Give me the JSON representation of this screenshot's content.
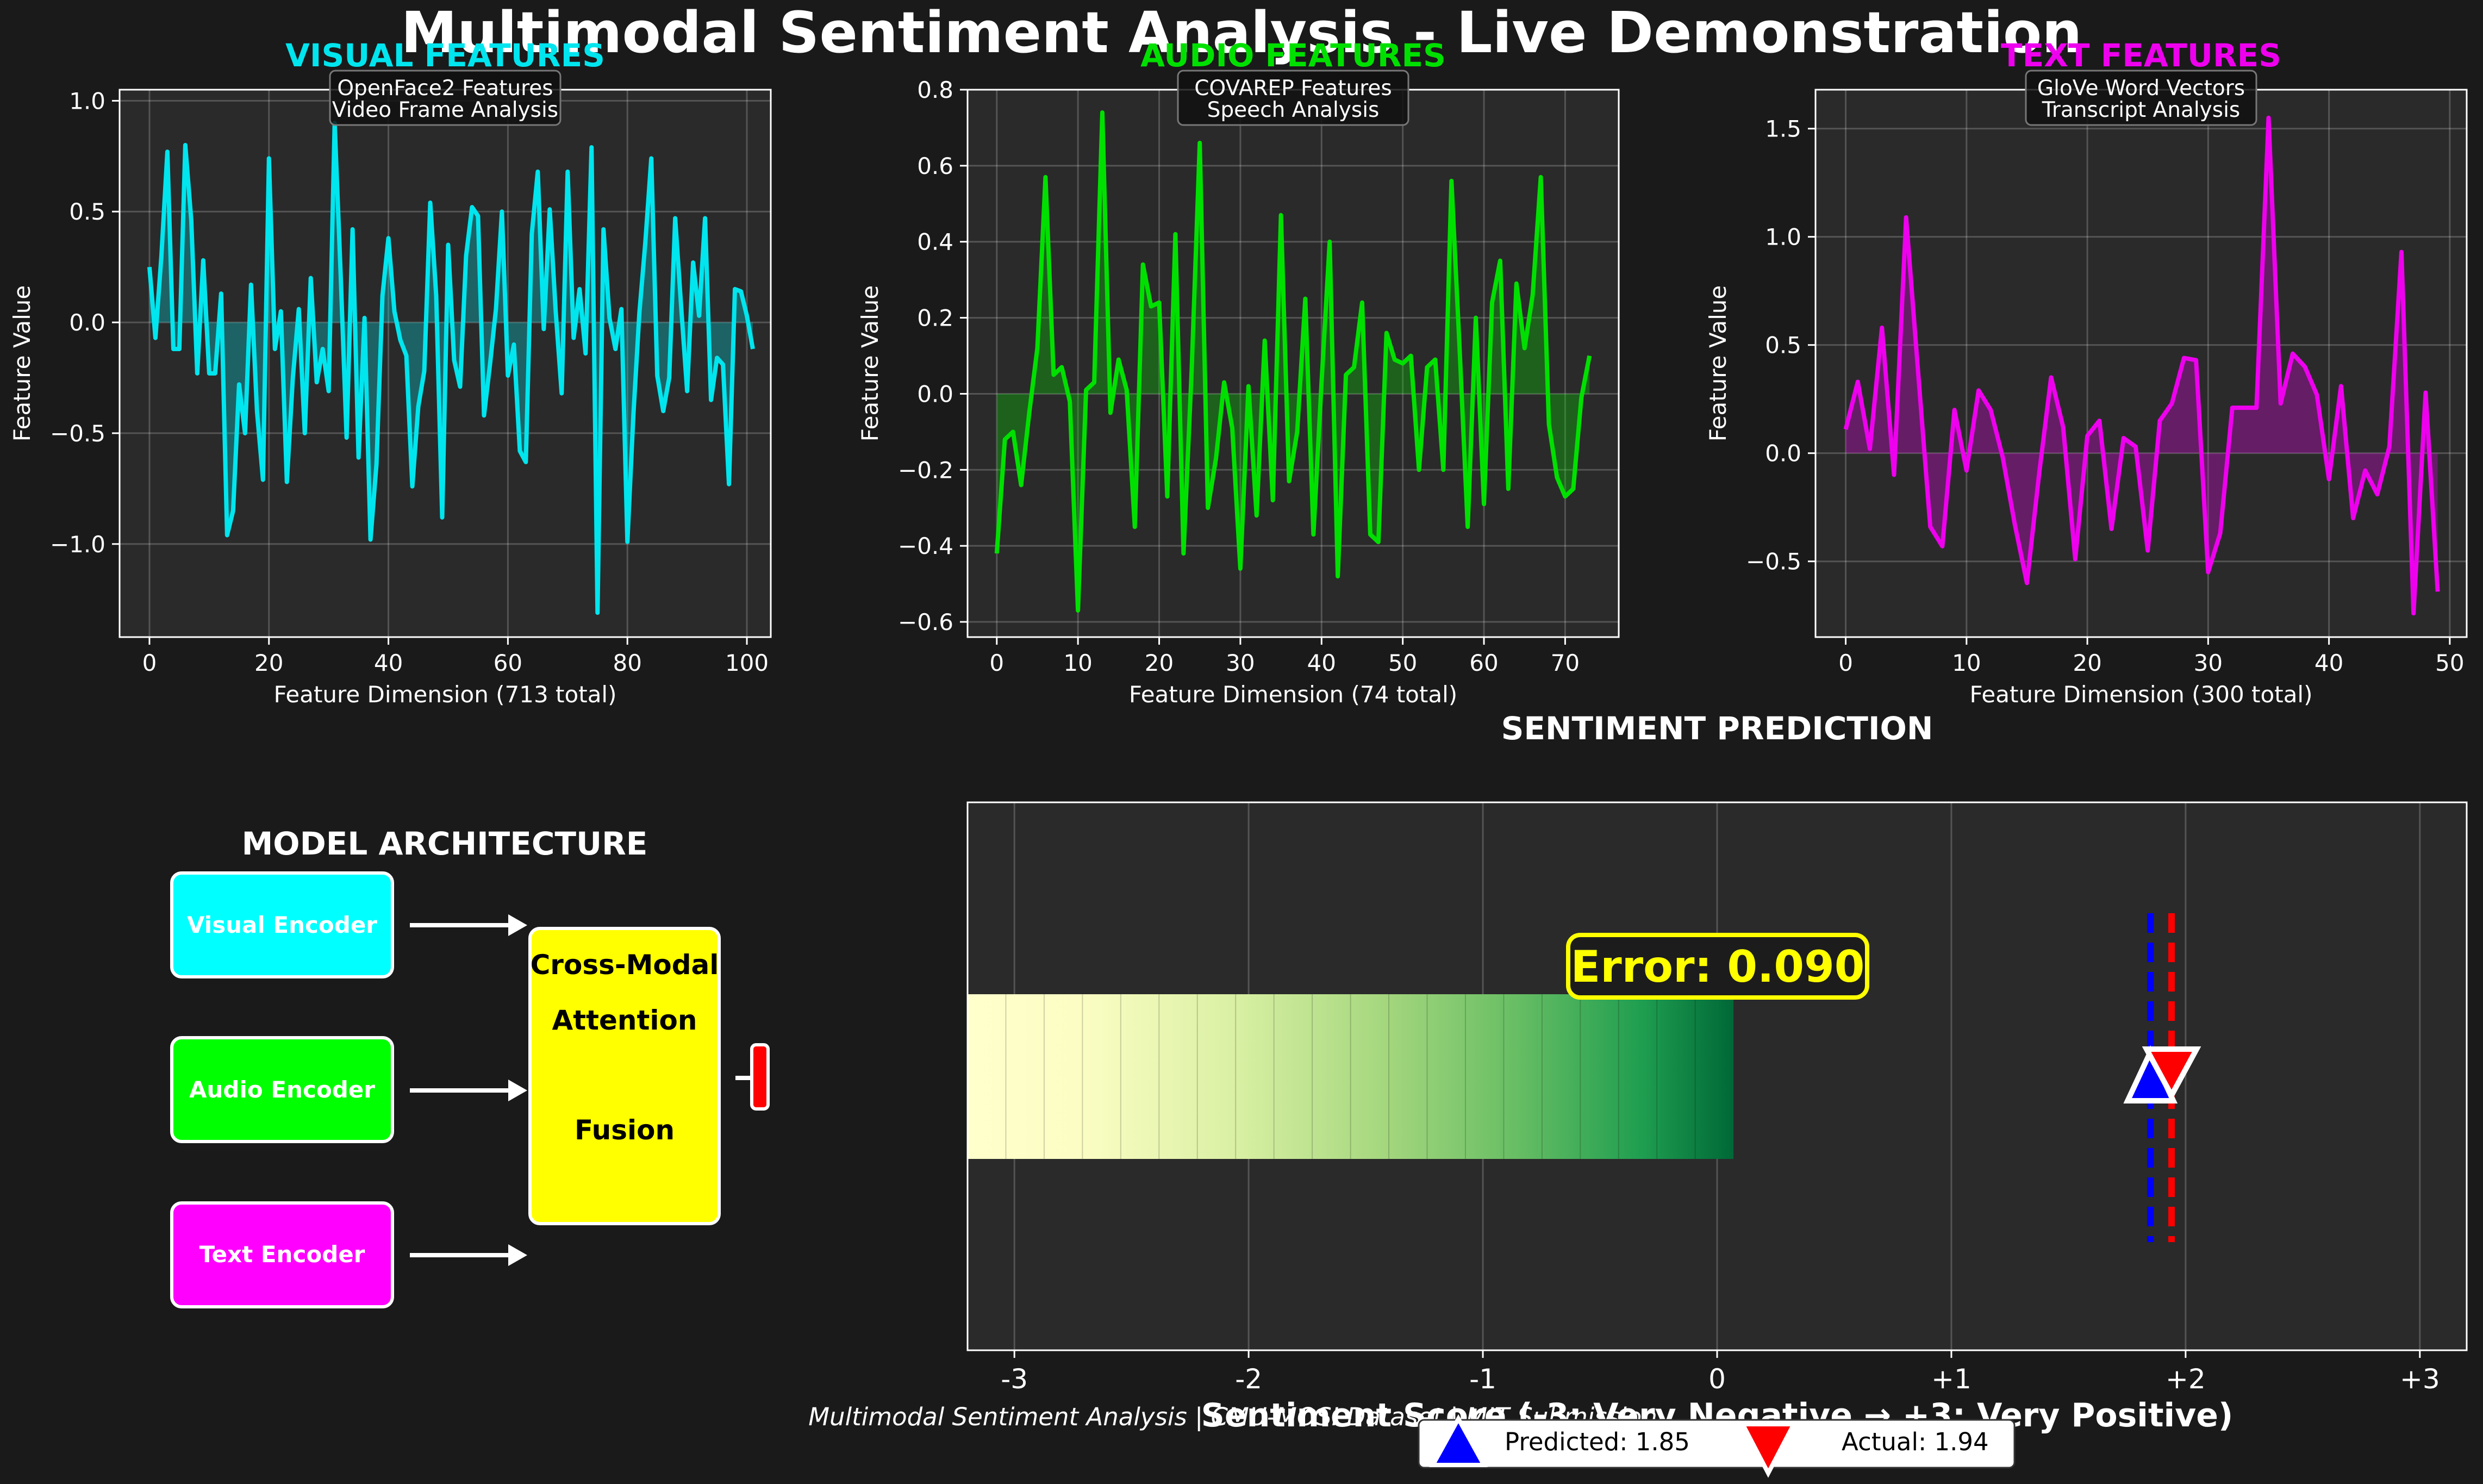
{
  "title": "Multimodal Sentiment Analysis - Live Demonstration",
  "colors": {
    "background": "#1a1a1a",
    "axes_bg": "#2a2a2a",
    "visual": "#00e5ee",
    "audio": "#00e000",
    "text": "#ee00ee",
    "predicted": "#0000ff",
    "actual": "#ff0000",
    "fusion": "#ffff00",
    "error": "#ffff00"
  },
  "panels": [
    {
      "title": "VISUAL FEATURES",
      "box_lines": [
        "OpenFace2 Features",
        "Video Frame Analysis"
      ],
      "xlabel": "Feature Dimension (713 total)",
      "ylabel": "Feature Value"
    },
    {
      "title": "AUDIO FEATURES",
      "box_lines": [
        "COVAREP Features",
        "Speech Analysis"
      ],
      "xlabel": "Feature Dimension (74 total)",
      "ylabel": "Feature Value"
    },
    {
      "title": "TEXT FEATURES",
      "box_lines": [
        "GloVe Word Vectors",
        "Transcript Analysis"
      ],
      "xlabel": "Feature Dimension (300 total)",
      "ylabel": "Feature Value"
    }
  ],
  "architecture": {
    "title": "MODEL ARCHITECTURE",
    "encoders": [
      "Visual Encoder",
      "Audio Encoder",
      "Text Encoder"
    ],
    "fusion_lines": [
      "Cross-Modal",
      "Attention",
      "Fusion"
    ]
  },
  "prediction": {
    "title": "SENTIMENT PREDICTION",
    "xlabel": "Sentiment Score (-3: Very Negative → +3: Very Positive)",
    "error_label": "Error: 0.090",
    "legend_predicted": "Predicted: 1.85",
    "legend_actual": "Actual: 1.94"
  },
  "footer": "Multimodal Sentiment Analysis | CMU-MOSI Dataset | MIT Submission",
  "chart_data": [
    {
      "type": "line",
      "name": "visual",
      "title": "VISUAL FEATURES",
      "xlabel": "Feature Dimension (713 total)",
      "ylabel": "Feature Value",
      "xlim": [
        -5,
        104
      ],
      "ylim": [
        -1.42,
        1.05
      ],
      "xticks": [
        0,
        20,
        40,
        60,
        80,
        100
      ],
      "yticks": [
        -1.0,
        -0.5,
        0.0,
        0.5,
        1.0
      ],
      "ytick_labels": [
        "−1.0",
        "−0.5",
        "0.0",
        "0.5",
        "1.0"
      ],
      "x_start": 0,
      "grid": true,
      "fill_to_zero": true,
      "y": [
        0.25,
        -0.07,
        0.3,
        0.77,
        -0.12,
        -0.12,
        0.8,
        0.46,
        -0.23,
        0.28,
        -0.23,
        -0.23,
        0.13,
        -0.96,
        -0.85,
        -0.28,
        -0.5,
        0.17,
        -0.4,
        -0.71,
        0.74,
        -0.12,
        0.05,
        -0.72,
        -0.25,
        0.06,
        -0.5,
        0.2,
        -0.27,
        -0.12,
        -0.31,
        0.9,
        0.22,
        -0.52,
        0.42,
        -0.61,
        0.02,
        -0.98,
        -0.64,
        0.12,
        0.38,
        0.05,
        -0.08,
        -0.15,
        -0.74,
        -0.38,
        -0.22,
        0.54,
        0.12,
        -0.88,
        0.35,
        -0.17,
        -0.29,
        0.3,
        0.52,
        0.48,
        -0.42,
        -0.19,
        0.06,
        0.5,
        -0.24,
        -0.1,
        -0.58,
        -0.63,
        0.4,
        0.68,
        -0.03,
        0.51,
        0.05,
        -0.32,
        0.68,
        -0.07,
        0.15,
        -0.14,
        0.79,
        -1.31,
        0.42,
        0.02,
        -0.12,
        0.06,
        -0.99,
        -0.42,
        0.04,
        0.36,
        0.74,
        -0.24,
        -0.4,
        -0.25,
        0.47,
        0.07,
        -0.31,
        0.27,
        0.03,
        0.47,
        -0.35,
        -0.16,
        -0.19,
        -0.73,
        0.15,
        0.14,
        0.03,
        -0.12
      ]
    },
    {
      "type": "line",
      "name": "audio",
      "title": "AUDIO FEATURES",
      "xlabel": "Feature Dimension (74 total)",
      "ylabel": "Feature Value",
      "xlim": [
        -3.6,
        76.6
      ],
      "ylim": [
        -0.64,
        0.8
      ],
      "xticks": [
        0,
        10,
        20,
        30,
        40,
        50,
        60,
        70
      ],
      "yticks": [
        -0.6,
        -0.4,
        -0.2,
        0.0,
        0.2,
        0.4,
        0.6,
        0.8
      ],
      "ytick_labels": [
        "−0.6",
        "−0.4",
        "−0.2",
        "0.0",
        "0.2",
        "0.4",
        "0.6",
        "0.8"
      ],
      "x_start": 0,
      "grid": true,
      "fill_to_zero": true,
      "y": [
        -0.42,
        -0.12,
        -0.1,
        -0.24,
        -0.05,
        0.12,
        0.57,
        0.05,
        0.07,
        -0.02,
        -0.57,
        0.01,
        0.03,
        0.74,
        -0.05,
        0.09,
        0.01,
        -0.35,
        0.34,
        0.23,
        0.24,
        -0.27,
        0.42,
        -0.42,
        0.06,
        0.66,
        -0.3,
        -0.17,
        0.03,
        -0.09,
        -0.46,
        0.02,
        -0.32,
        0.14,
        -0.28,
        0.47,
        -0.23,
        -0.1,
        0.25,
        -0.37,
        0.03,
        0.4,
        -0.48,
        0.05,
        0.07,
        0.24,
        -0.37,
        -0.39,
        0.16,
        0.09,
        0.08,
        0.1,
        -0.2,
        0.07,
        0.09,
        -0.2,
        0.56,
        0.12,
        -0.35,
        0.2,
        -0.29,
        0.24,
        0.35,
        -0.25,
        0.29,
        0.12,
        0.26,
        0.57,
        -0.08,
        -0.22,
        -0.27,
        -0.25,
        -0.01,
        0.1
      ]
    },
    {
      "type": "line",
      "name": "text",
      "title": "TEXT FEATURES",
      "xlabel": "Feature Dimension (300 total)",
      "ylabel": "Feature Value",
      "xlim": [
        -2.5,
        51.4
      ],
      "ylim": [
        -0.85,
        1.68
      ],
      "xticks": [
        0,
        10,
        20,
        30,
        40,
        50
      ],
      "yticks": [
        -0.5,
        0.0,
        0.5,
        1.0,
        1.5
      ],
      "ytick_labels": [
        "−0.5",
        "0.0",
        "0.5",
        "1.0",
        "1.5"
      ],
      "x_start": 0,
      "grid": true,
      "fill_to_zero": true,
      "y": [
        0.11,
        0.33,
        0.02,
        0.58,
        -0.1,
        1.09,
        0.37,
        -0.34,
        -0.43,
        0.2,
        -0.08,
        0.29,
        0.2,
        -0.02,
        -0.33,
        -0.6,
        -0.1,
        0.35,
        0.12,
        -0.49,
        0.08,
        0.15,
        -0.35,
        0.07,
        0.03,
        -0.45,
        0.15,
        0.23,
        0.44,
        0.43,
        -0.55,
        -0.37,
        0.21,
        0.21,
        0.21,
        1.55,
        0.23,
        0.46,
        0.4,
        0.27,
        -0.12,
        0.31,
        -0.3,
        -0.08,
        -0.19,
        0.03,
        0.93,
        -0.74,
        0.28,
        -0.64
      ]
    },
    {
      "type": "bar",
      "name": "sentiment",
      "title": "SENTIMENT PREDICTION",
      "xlabel": "Sentiment Score (-3: Very Negative → +3: Very Positive)",
      "xlim": [
        -3.2,
        3.2
      ],
      "xticks": [
        -3,
        -2,
        -1,
        0,
        1,
        2,
        3
      ],
      "xtick_labels": [
        "-3",
        "-2",
        "-1",
        "0",
        "+1",
        "+2",
        "+3"
      ],
      "gradient_from": -3.2,
      "gradient_to": 0.07,
      "predicted": 1.85,
      "actual": 1.94,
      "error": 0.09,
      "grid": true,
      "legend": "bottom-center"
    }
  ]
}
